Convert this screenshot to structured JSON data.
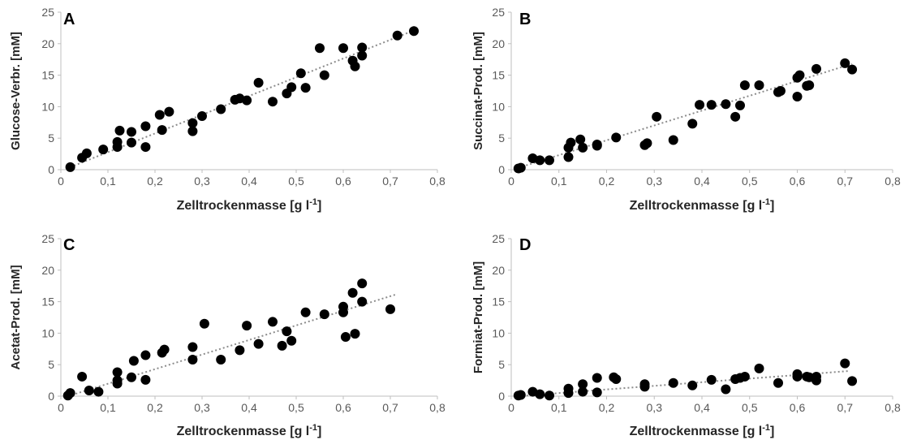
{
  "chart_data": [
    {
      "type": "scatter",
      "panel_label": "A",
      "xlabel": "Zelltrockenmasse [g l",
      "xlabel_sup": "-1",
      "xlabel_end": "]",
      "ylabel": "Glucose-Verbr. [mM]",
      "xlim": [
        0,
        0.8
      ],
      "ylim": [
        0,
        25
      ],
      "xticks": [
        "0",
        "0,1",
        "0,2",
        "0,3",
        "0,4",
        "0,5",
        "0,6",
        "0,7",
        "0,8"
      ],
      "yticks": [
        "0",
        "5",
        "10",
        "15",
        "20",
        "25"
      ],
      "trendline": {
        "x": [
          0.02,
          0.75
        ],
        "y": [
          0.4,
          22.1
        ]
      },
      "series": [
        {
          "x": [
            0.02,
            0.045,
            0.055,
            0.09,
            0.12,
            0.12,
            0.125,
            0.15,
            0.15,
            0.18,
            0.18,
            0.21,
            0.215,
            0.23,
            0.28,
            0.28,
            0.3,
            0.34,
            0.37,
            0.38,
            0.395,
            0.42,
            0.45,
            0.48,
            0.49,
            0.51,
            0.52,
            0.55,
            0.56,
            0.6,
            0.62,
            0.625,
            0.64,
            0.64,
            0.715,
            0.75
          ],
          "y": [
            0.4,
            1.9,
            2.6,
            3.2,
            4.4,
            3.6,
            6.2,
            6.0,
            4.3,
            6.9,
            3.6,
            8.7,
            6.3,
            9.2,
            7.4,
            6.1,
            8.5,
            9.6,
            11.1,
            11.3,
            11.0,
            13.8,
            10.8,
            12.1,
            13.1,
            15.3,
            13.0,
            19.3,
            15.0,
            19.3,
            17.3,
            16.4,
            18.1,
            19.4,
            21.3,
            22.0
          ]
        }
      ]
    },
    {
      "type": "scatter",
      "panel_label": "B",
      "xlabel": "Zelltrockenmasse [g l",
      "xlabel_sup": "-1",
      "xlabel_end": "]",
      "ylabel": "Succinat-Prod. [mM]",
      "xlim": [
        0,
        0.8
      ],
      "ylim": [
        0,
        25
      ],
      "xticks": [
        "0",
        "0,1",
        "0,2",
        "0,3",
        "0,4",
        "0,5",
        "0,6",
        "0,7",
        "0,8"
      ],
      "yticks": [
        "0",
        "5",
        "10",
        "15",
        "20",
        "25"
      ],
      "trendline": {
        "x": [
          0.015,
          0.715
        ],
        "y": [
          0.3,
          16.8
        ]
      },
      "series": [
        {
          "x": [
            0.015,
            0.02,
            0.045,
            0.06,
            0.08,
            0.12,
            0.12,
            0.125,
            0.145,
            0.15,
            0.18,
            0.18,
            0.22,
            0.28,
            0.285,
            0.305,
            0.34,
            0.38,
            0.395,
            0.42,
            0.45,
            0.47,
            0.48,
            0.49,
            0.52,
            0.56,
            0.565,
            0.6,
            0.6,
            0.605,
            0.62,
            0.625,
            0.64,
            0.7,
            0.715
          ],
          "y": [
            0.2,
            0.3,
            1.8,
            1.5,
            1.5,
            3.5,
            2.0,
            4.3,
            4.8,
            3.5,
            4.0,
            3.8,
            5.1,
            3.9,
            4.2,
            8.4,
            4.7,
            7.3,
            10.3,
            10.3,
            10.4,
            8.4,
            10.2,
            13.4,
            13.4,
            12.3,
            12.5,
            11.6,
            14.6,
            15.0,
            13.3,
            13.4,
            16.0,
            16.9,
            15.9
          ]
        }
      ]
    },
    {
      "type": "scatter",
      "panel_label": "C",
      "xlabel": "Zelltrockenmasse [g l",
      "xlabel_sup": "-1",
      "xlabel_end": "]",
      "ylabel": "Acetat-Prod. [mM]",
      "xlim": [
        0,
        0.8
      ],
      "ylim": [
        0,
        25
      ],
      "xticks": [
        "0",
        "0,1",
        "0,2",
        "0,3",
        "0,4",
        "0,5",
        "0,6",
        "0,7",
        "0,8"
      ],
      "yticks": [
        "0",
        "5",
        "10",
        "15",
        "20",
        "25"
      ],
      "trendline": {
        "x": [
          0.015,
          0.71
        ],
        "y": [
          0.0,
          16.1
        ]
      },
      "series": [
        {
          "x": [
            0.015,
            0.02,
            0.045,
            0.06,
            0.08,
            0.12,
            0.12,
            0.12,
            0.15,
            0.155,
            0.18,
            0.18,
            0.215,
            0.22,
            0.28,
            0.28,
            0.305,
            0.34,
            0.38,
            0.395,
            0.42,
            0.45,
            0.47,
            0.48,
            0.49,
            0.52,
            0.56,
            0.6,
            0.6,
            0.605,
            0.62,
            0.625,
            0.64,
            0.64,
            0.7
          ],
          "y": [
            0.1,
            0.5,
            3.1,
            0.9,
            0.7,
            3.8,
            2.5,
            2.0,
            3.0,
            5.6,
            6.5,
            2.6,
            6.9,
            7.4,
            7.8,
            5.8,
            11.5,
            5.8,
            7.3,
            11.2,
            8.3,
            11.8,
            8.0,
            10.3,
            8.8,
            13.3,
            13.0,
            14.2,
            13.3,
            9.4,
            16.4,
            9.9,
            17.9,
            15.0,
            13.8
          ]
        }
      ]
    },
    {
      "type": "scatter",
      "panel_label": "D",
      "xlabel": "Zelltrockenmasse [g l",
      "xlabel_sup": "-1",
      "xlabel_end": "]",
      "ylabel": "Formiat-Prod. [mM]",
      "xlim": [
        0,
        0.8
      ],
      "ylim": [
        0,
        25
      ],
      "xticks": [
        "0",
        "0,1",
        "0,2",
        "0,3",
        "0,4",
        "0,5",
        "0,6",
        "0,7",
        "0,8"
      ],
      "yticks": [
        "0",
        "5",
        "10",
        "15",
        "20",
        "25"
      ],
      "trendline": {
        "x": [
          0.015,
          0.71
        ],
        "y": [
          0.0,
          4.0
        ]
      },
      "series": [
        {
          "x": [
            0.015,
            0.02,
            0.045,
            0.06,
            0.08,
            0.12,
            0.12,
            0.15,
            0.15,
            0.18,
            0.18,
            0.215,
            0.22,
            0.28,
            0.28,
            0.34,
            0.38,
            0.42,
            0.45,
            0.47,
            0.48,
            0.49,
            0.52,
            0.56,
            0.6,
            0.6,
            0.62,
            0.625,
            0.64,
            0.64,
            0.7,
            0.715
          ],
          "y": [
            0.1,
            0.2,
            0.7,
            0.3,
            0.1,
            1.2,
            0.5,
            1.9,
            0.7,
            2.9,
            0.6,
            3.0,
            2.7,
            1.9,
            1.5,
            2.1,
            1.7,
            2.6,
            1.1,
            2.7,
            2.9,
            3.1,
            4.4,
            2.1,
            3.5,
            3.1,
            3.1,
            3.0,
            2.5,
            3.1,
            5.2,
            2.4
          ]
        }
      ]
    }
  ]
}
